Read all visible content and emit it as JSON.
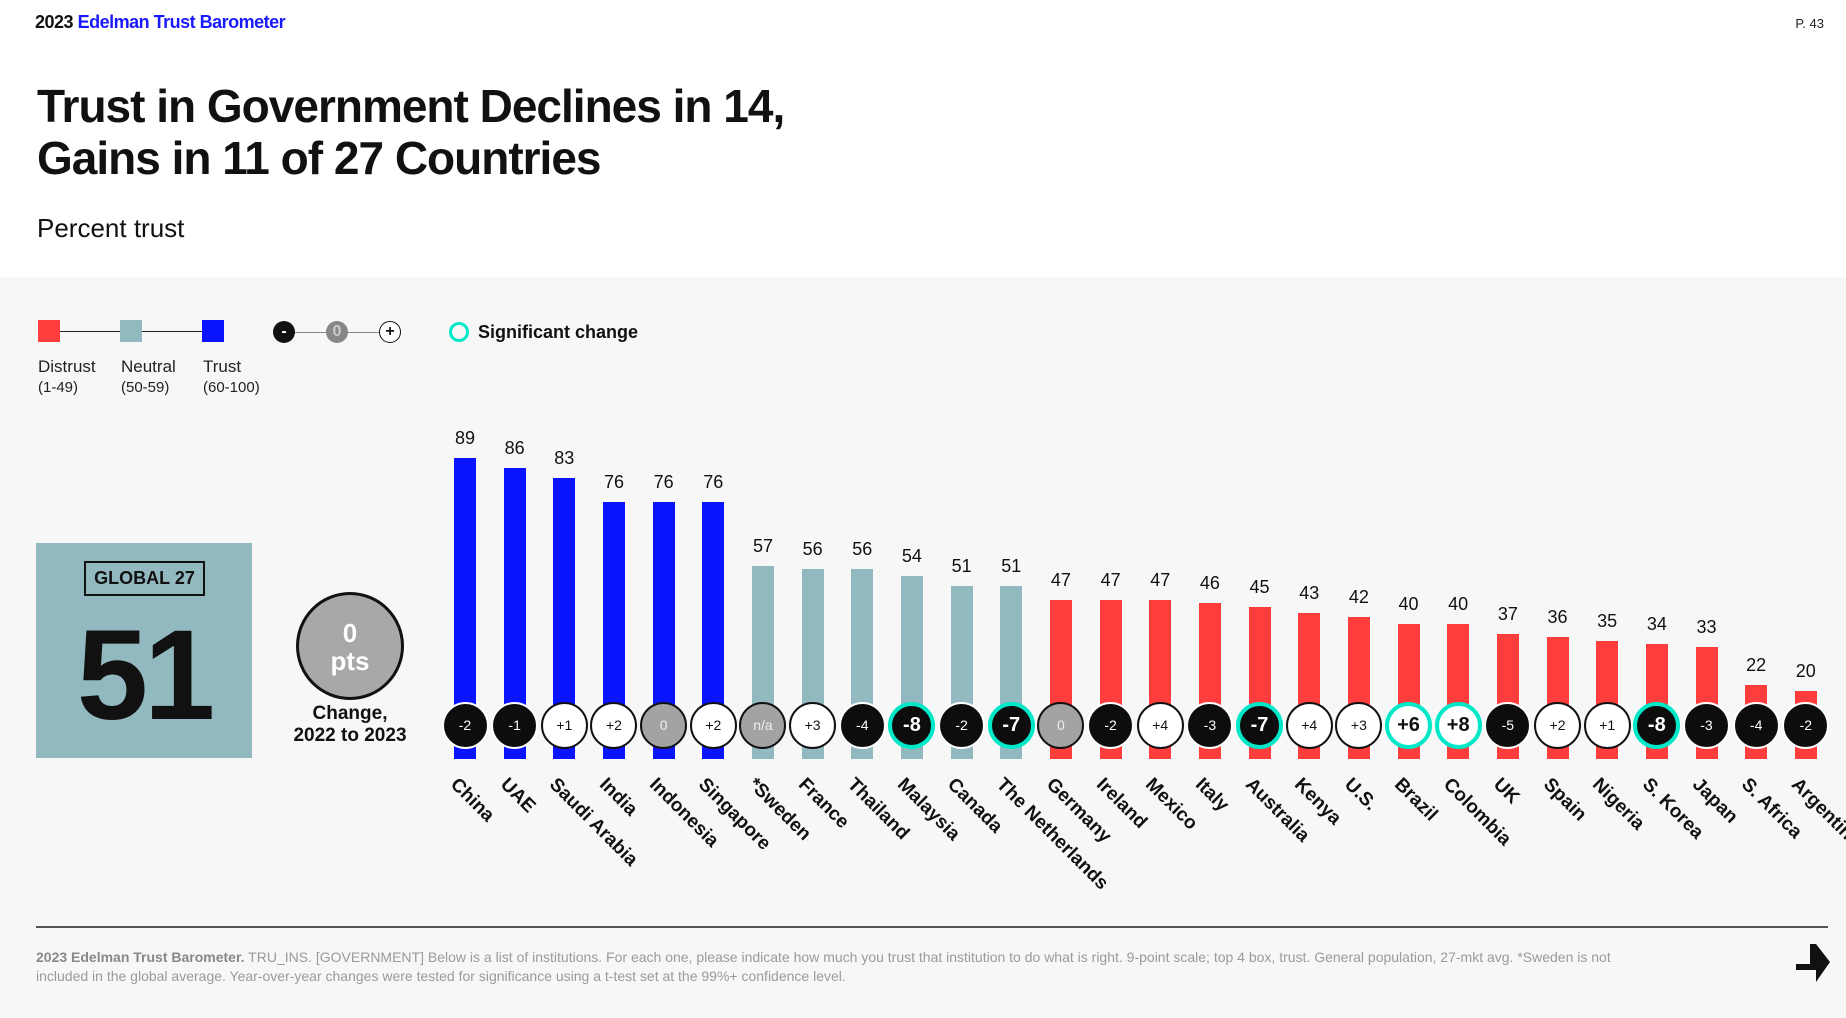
{
  "header": {
    "year": "2023",
    "brand": "Edelman Trust Barometer",
    "page": "P. 43"
  },
  "title_line1": "Trust in Government Declines in 14,",
  "title_line2": "Gains in 11 of 27 Countries",
  "subtitle": "Percent trust",
  "legend": {
    "distrust": {
      "label": "Distrust",
      "range": "(1-49)",
      "color": "#ff3d3d"
    },
    "neutral": {
      "label": "Neutral",
      "range": "(50-59)",
      "color": "#93b9c0"
    },
    "trust": {
      "label": "Trust",
      "range": "(60-100)",
      "color": "#0a14ff"
    },
    "minus": "-",
    "zero": "0",
    "plus": "+",
    "significant": "Significant change",
    "significant_color": "#00e8c8"
  },
  "global": {
    "label": "GLOBAL 27",
    "value": "51",
    "change": "0",
    "change_unit": "pts",
    "change_label_1": "Change,",
    "change_label_2": "2022 to 2023"
  },
  "chart_data": {
    "type": "bar",
    "ylim": [
      0,
      100
    ],
    "categories": [
      "China",
      "UAE",
      "Saudi Arabia",
      "India",
      "Indonesia",
      "Singapore",
      "*Sweden",
      "France",
      "Thailand",
      "Malaysia",
      "Canada",
      "The Netherlands",
      "Germany",
      "Ireland",
      "Mexico",
      "Italy",
      "Australia",
      "Kenya",
      "U.S.",
      "Brazil",
      "Colombia",
      "UK",
      "Spain",
      "Nigeria",
      "S. Korea",
      "Japan",
      "S. Africa",
      "Argentina"
    ],
    "values": [
      89,
      86,
      83,
      76,
      76,
      76,
      57,
      56,
      56,
      54,
      51,
      51,
      47,
      47,
      47,
      46,
      45,
      43,
      42,
      40,
      40,
      37,
      36,
      35,
      34,
      33,
      22,
      20
    ],
    "changes": [
      "-2",
      "-1",
      "+1",
      "+2",
      "0",
      "+2",
      "n/a",
      "+3",
      "-4",
      "-8",
      "-2",
      "-7",
      "0",
      "-2",
      "+4",
      "-3",
      "-7",
      "+4",
      "+3",
      "+6",
      "+8",
      "-5",
      "+2",
      "+1",
      "-8",
      "-3",
      "-4",
      "-2"
    ],
    "significant": [
      false,
      false,
      false,
      false,
      false,
      false,
      false,
      false,
      false,
      true,
      false,
      true,
      false,
      false,
      false,
      false,
      true,
      false,
      false,
      true,
      true,
      false,
      false,
      false,
      true,
      false,
      false,
      false
    ]
  },
  "footer": {
    "bold": "2023 Edelman Trust Barometer.",
    "text": " TRU_INS. [GOVERNMENT] Below is a list of institutions. For each one, please indicate how much you trust that institution to do what is right. 9-point scale; top 4 box, trust. General population, 27-mkt avg. *Sweden is not included in the global average. Year-over-year changes were tested for significance using a t-test set at the 99%+ confidence level."
  }
}
